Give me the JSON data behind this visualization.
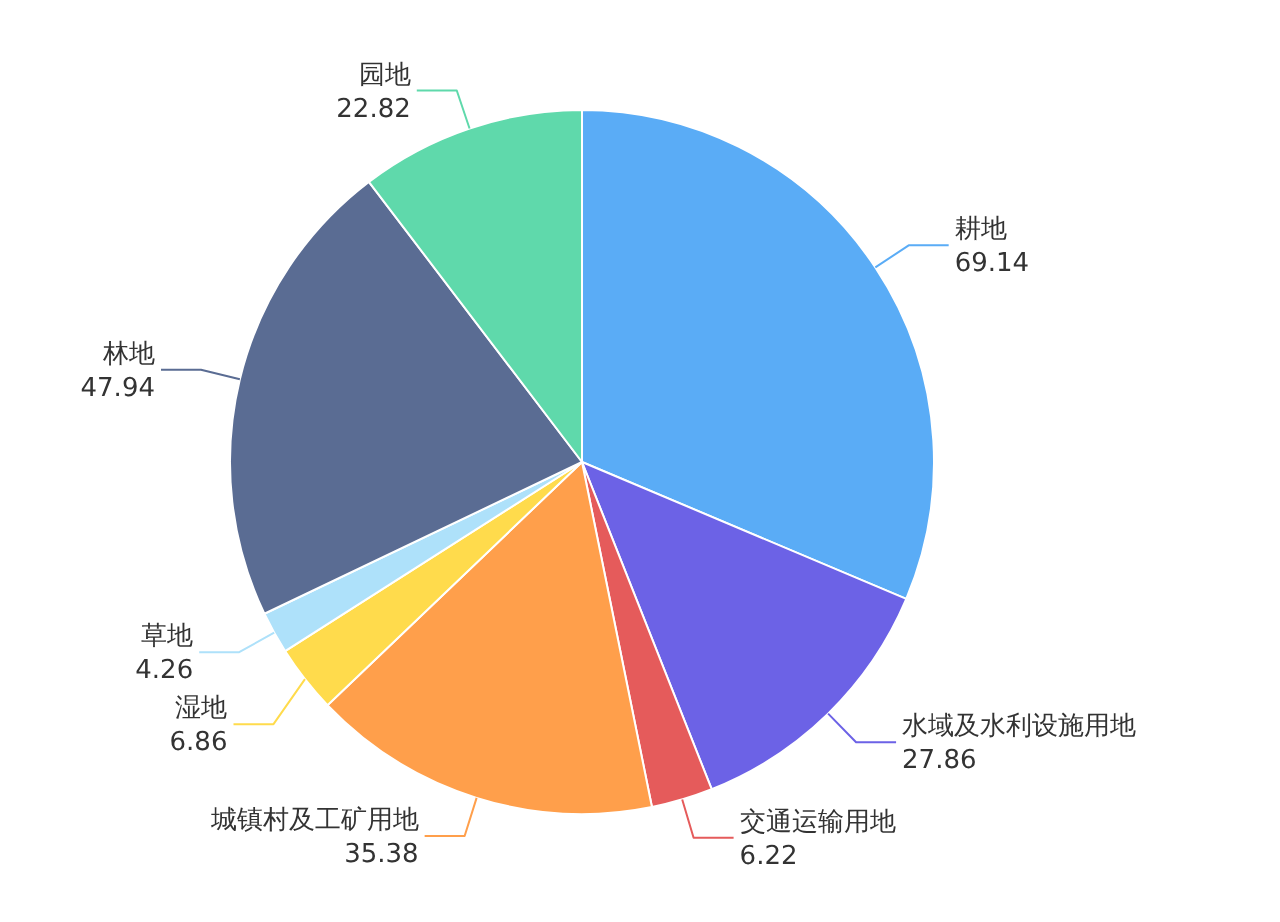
{
  "chart_data": {
    "type": "pie",
    "categories": [
      "耕地",
      "水域及水利设施用地",
      "交通运输用地",
      "城镇村及工矿用地",
      "湿地",
      "草地",
      "林地",
      "园地"
    ],
    "values": [
      69.14,
      27.86,
      6.22,
      35.38,
      6.86,
      4.26,
      47.94,
      22.82
    ],
    "colors": [
      "#5aacf6",
      "#6c62e6",
      "#e55b5b",
      "#ff9f4b",
      "#ffdb4c",
      "#aee1fa",
      "#5a6c93",
      "#5fd9ab"
    ],
    "data_labels": true
  }
}
